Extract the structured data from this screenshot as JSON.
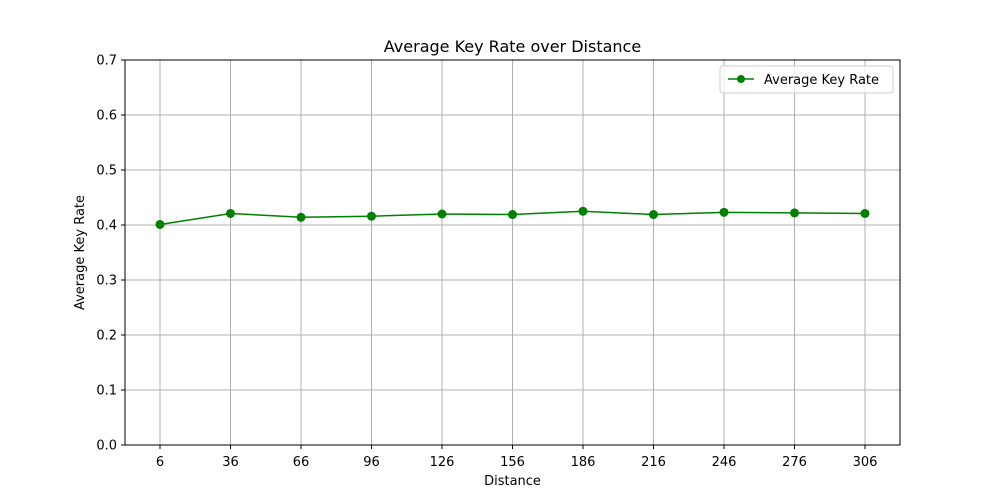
{
  "chart_data": {
    "type": "line",
    "title": "Average Key Rate over Distance",
    "xlabel": "Distance",
    "ylabel": "Average Key Rate",
    "x": [
      6,
      36,
      66,
      96,
      126,
      156,
      186,
      216,
      246,
      276,
      306
    ],
    "x_tick_labels": [
      "6",
      "36",
      "66",
      "96",
      "126",
      "156",
      "186",
      "216",
      "246",
      "276",
      "306"
    ],
    "ylim": [
      0,
      0.7
    ],
    "y_ticks": [
      0.0,
      0.1,
      0.2,
      0.3,
      0.4,
      0.5,
      0.6,
      0.7
    ],
    "y_tick_labels": [
      "0.0",
      "0.1",
      "0.2",
      "0.3",
      "0.4",
      "0.5",
      "0.6",
      "0.7"
    ],
    "grid": true,
    "legend_position": "top-right",
    "series": [
      {
        "name": "Average Key Rate",
        "color": "#008000",
        "marker": "circle",
        "values": [
          0.401,
          0.421,
          0.414,
          0.416,
          0.42,
          0.419,
          0.425,
          0.419,
          0.423,
          0.422,
          0.421
        ]
      }
    ]
  }
}
